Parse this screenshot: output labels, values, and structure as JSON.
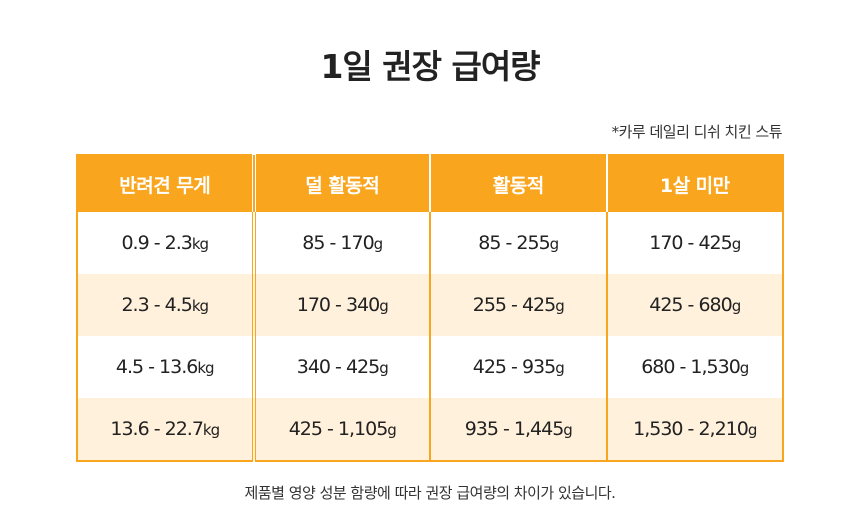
{
  "title": "1일 권장 급여량",
  "note": "*카루 데일리 디쉬 치킨 스튜",
  "table": {
    "headers": [
      "반려견 무게",
      "덜 활동적",
      "활동적",
      "1살 미만"
    ],
    "rows": [
      [
        {
          "v": "0.9 - 2.3",
          "u": "kg"
        },
        {
          "v": "85 - 170",
          "u": "g"
        },
        {
          "v": "85 - 255",
          "u": "g"
        },
        {
          "v": "170 - 425",
          "u": "g"
        }
      ],
      [
        {
          "v": "2.3 - 4.5",
          "u": "kg"
        },
        {
          "v": "170 - 340",
          "u": "g"
        },
        {
          "v": "255 - 425",
          "u": "g"
        },
        {
          "v": "425 - 680",
          "u": "g"
        }
      ],
      [
        {
          "v": "4.5 - 13.6",
          "u": "kg"
        },
        {
          "v": "340 - 425",
          "u": "g"
        },
        {
          "v": "425 - 935",
          "u": "g"
        },
        {
          "v": "680 - 1,530",
          "u": "g"
        }
      ],
      [
        {
          "v": "13.6 - 22.7",
          "u": "kg"
        },
        {
          "v": "425 - 1,105",
          "u": "g"
        },
        {
          "v": "935 - 1,445",
          "u": "g"
        },
        {
          "v": "1,530 - 2,210",
          "u": "g"
        }
      ]
    ]
  },
  "footnote": "제품별 영양 성분 함량에 따라 권장 급여량의 차이가 있습니다.",
  "colors": {
    "accent": "#F9A51D",
    "row_alt": "#FFF1DC"
  }
}
